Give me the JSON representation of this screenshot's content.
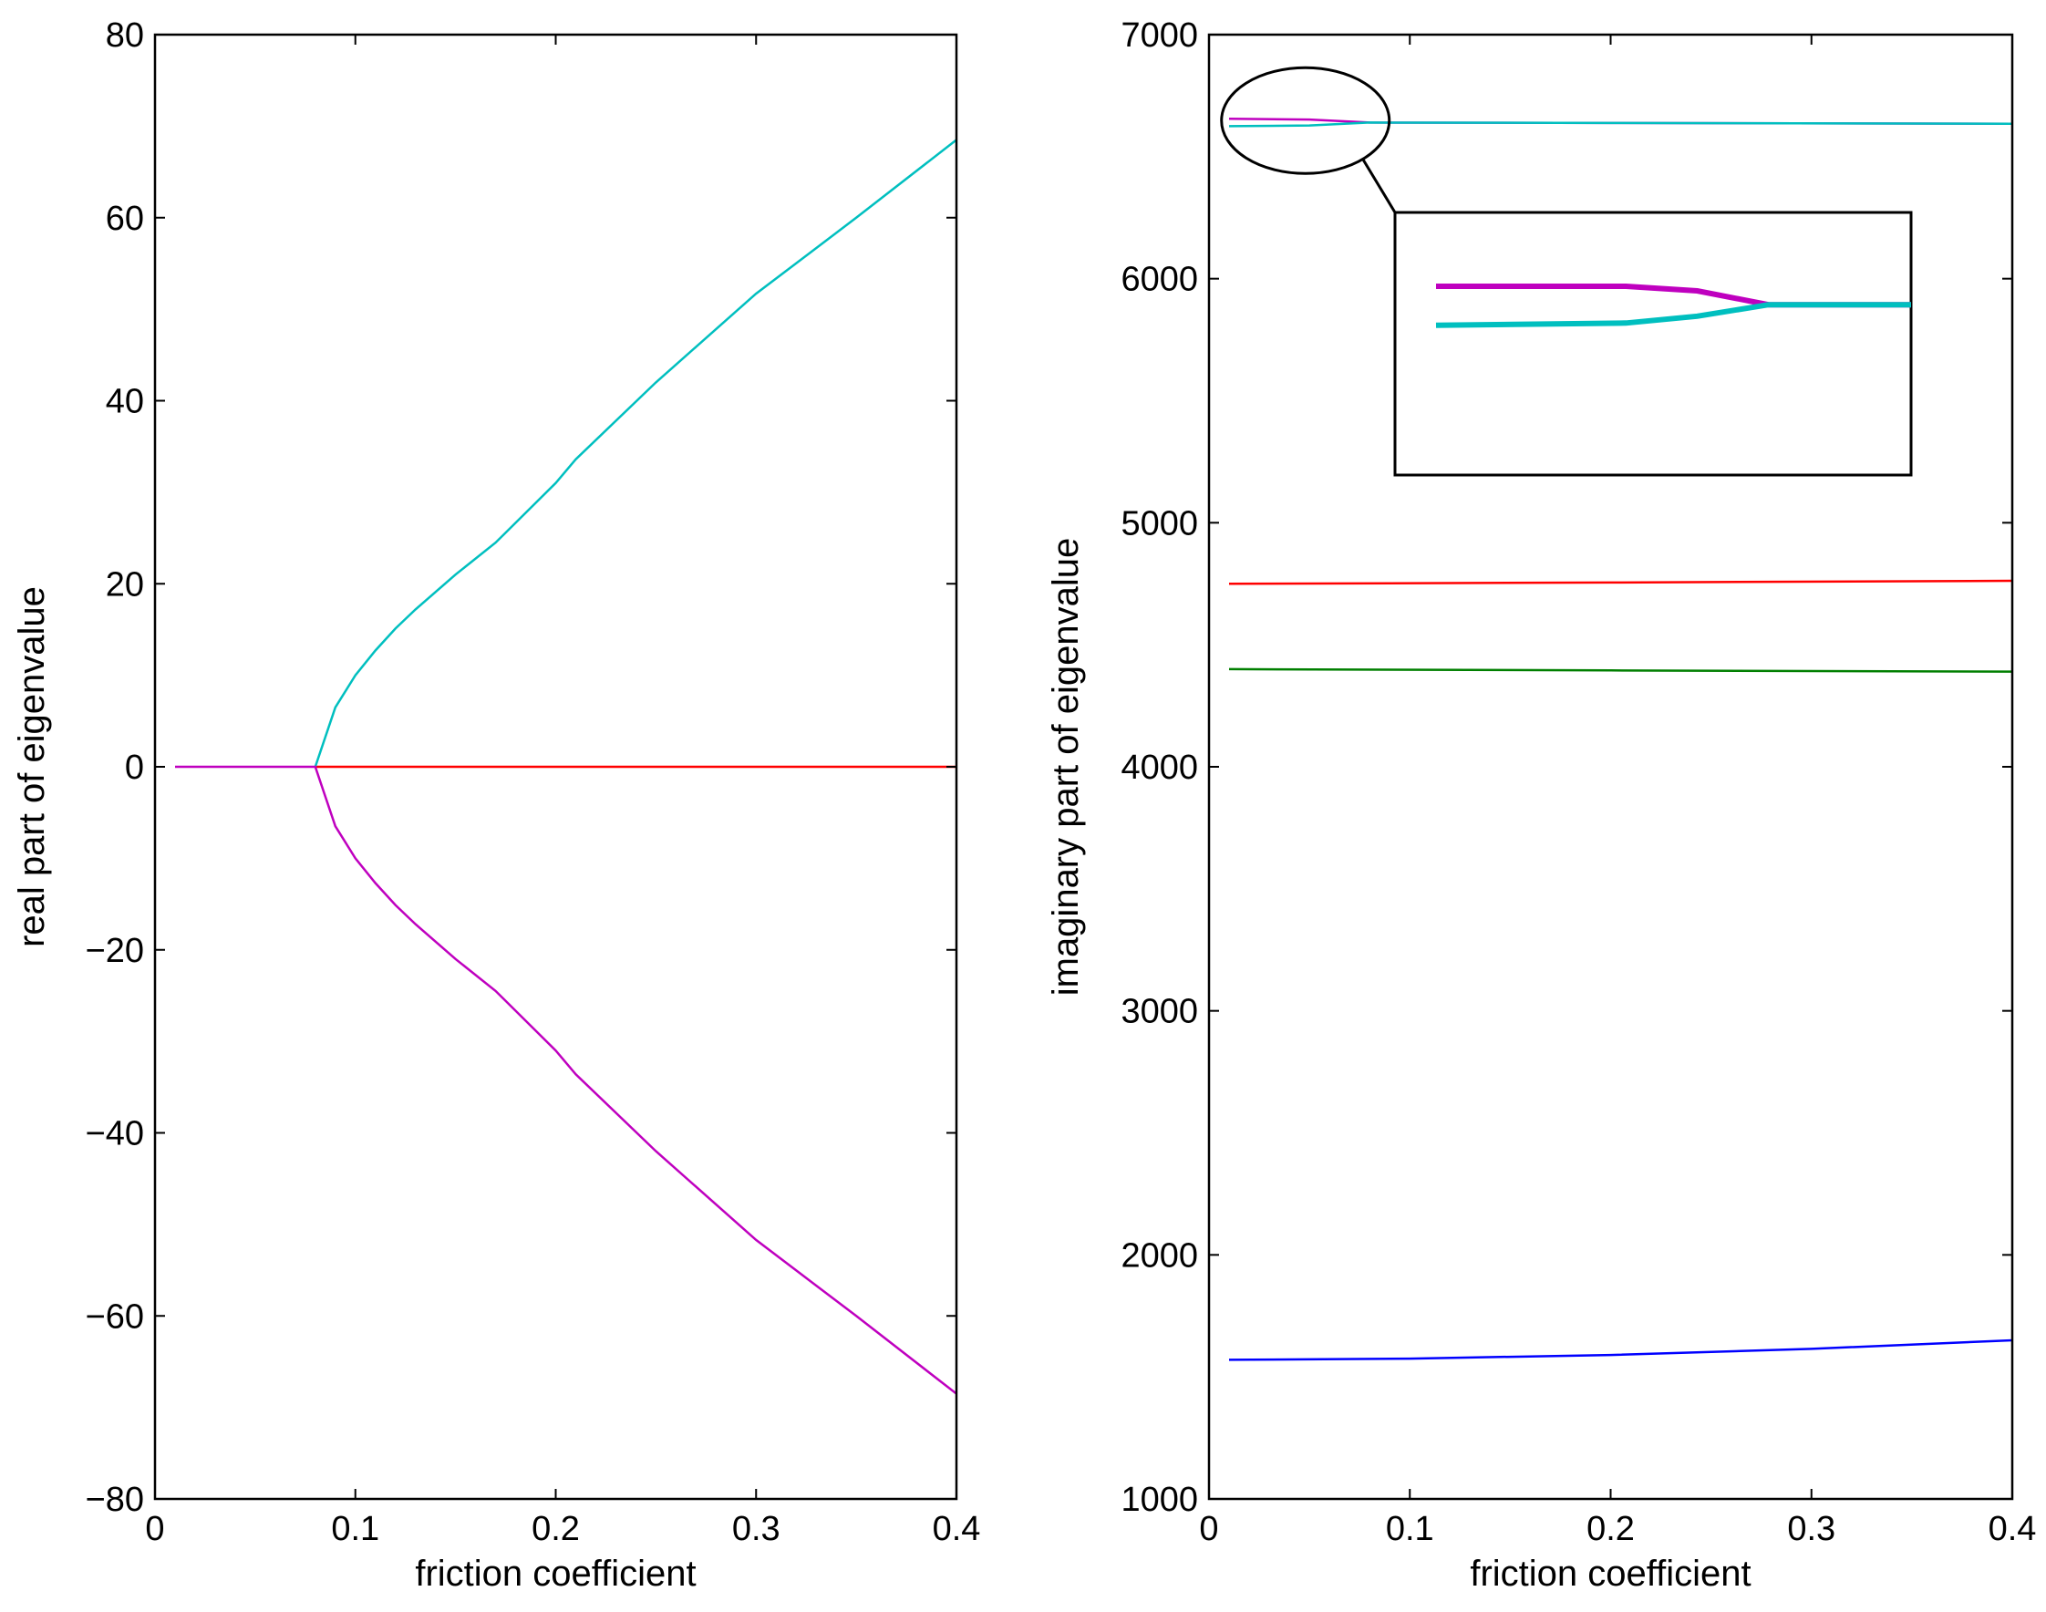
{
  "chart_data": [
    {
      "type": "line",
      "xlabel": "friction coefficient",
      "ylabel": "real part of eigenvalue",
      "xlim": [
        0,
        0.4
      ],
      "ylim": [
        -80,
        80
      ],
      "xticks": [
        0,
        0.1,
        0.2,
        0.3,
        0.4
      ],
      "xtick_labels": [
        "0",
        "0.1",
        "0.2",
        "0.3",
        "0.4"
      ],
      "yticks": [
        -80,
        -60,
        -40,
        -20,
        0,
        20,
        40,
        60,
        80
      ],
      "ytick_labels": [
        "−80",
        "−60",
        "−40",
        "−20",
        "0",
        "20",
        "40",
        "60",
        "80"
      ],
      "grid": false,
      "series": [
        {
          "color": "#ff0000",
          "x": [
            0.08,
            0.4
          ],
          "y": [
            0,
            0
          ]
        },
        {
          "color": "#00bfbf",
          "x": [
            0.08,
            0.09,
            0.1,
            0.11,
            0.12,
            0.13,
            0.15,
            0.17,
            0.2,
            0.21,
            0.25,
            0.3,
            0.35,
            0.4
          ],
          "y": [
            0,
            6.5,
            10.0,
            12.7,
            15.1,
            17.2,
            21.0,
            24.5,
            31.0,
            33.6,
            42.0,
            51.7,
            60.0,
            68.5
          ]
        },
        {
          "color": "#bf00bf",
          "x": [
            0.01,
            0.08,
            0.09,
            0.1,
            0.11,
            0.12,
            0.13,
            0.15,
            0.17,
            0.2,
            0.21,
            0.25,
            0.3,
            0.35,
            0.4
          ],
          "y": [
            0,
            0,
            -6.5,
            -10.0,
            -12.7,
            -15.1,
            -17.2,
            -21.0,
            -24.5,
            -31.0,
            -33.6,
            -42.0,
            -51.7,
            -60.0,
            -68.5
          ]
        }
      ]
    },
    {
      "type": "line",
      "xlabel": "friction coefficient",
      "ylabel": "imaginary part of eigenvalue",
      "xlim": [
        0,
        0.4
      ],
      "ylim": [
        1000,
        7000
      ],
      "xticks": [
        0,
        0.1,
        0.2,
        0.3,
        0.4
      ],
      "xtick_labels": [
        "0",
        "0.1",
        "0.2",
        "0.3",
        "0.4"
      ],
      "yticks": [
        1000,
        2000,
        3000,
        4000,
        5000,
        6000,
        7000
      ],
      "ytick_labels": [
        "1000",
        "2000",
        "3000",
        "4000",
        "5000",
        "6000",
        "7000"
      ],
      "grid": false,
      "series": [
        {
          "color": "#bf00bf",
          "x": [
            0.01,
            0.05,
            0.08,
            0.2,
            0.4
          ],
          "y": [
            6655,
            6652,
            6640,
            6638,
            6635
          ]
        },
        {
          "color": "#00bfbf",
          "x": [
            0.01,
            0.05,
            0.08,
            0.2,
            0.4
          ],
          "y": [
            6625,
            6628,
            6640,
            6638,
            6635
          ]
        },
        {
          "color": "#ff0000",
          "x": [
            0.01,
            0.2,
            0.4
          ],
          "y": [
            4750,
            4755,
            4762
          ]
        },
        {
          "color": "#007f00",
          "x": [
            0.01,
            0.2,
            0.4
          ],
          "y": [
            4400,
            4395,
            4390
          ]
        },
        {
          "color": "#0000ff",
          "x": [
            0.01,
            0.1,
            0.2,
            0.3,
            0.4
          ],
          "y": [
            1570,
            1575,
            1590,
            1615,
            1650
          ]
        }
      ],
      "inset": {
        "zoom_center": [
          0.048,
          6648
        ],
        "series": [
          {
            "color": "#bf00bf",
            "x": [
              0,
              0.4,
              0.55,
              0.7,
              1
            ],
            "y": [
              0.25,
              0.25,
              0.27,
              0.33,
              0.33
            ]
          },
          {
            "color": "#00bfbf",
            "x": [
              0,
              0.4,
              0.55,
              0.7,
              1
            ],
            "y": [
              0.42,
              0.41,
              0.38,
              0.33,
              0.33
            ]
          }
        ]
      }
    }
  ]
}
